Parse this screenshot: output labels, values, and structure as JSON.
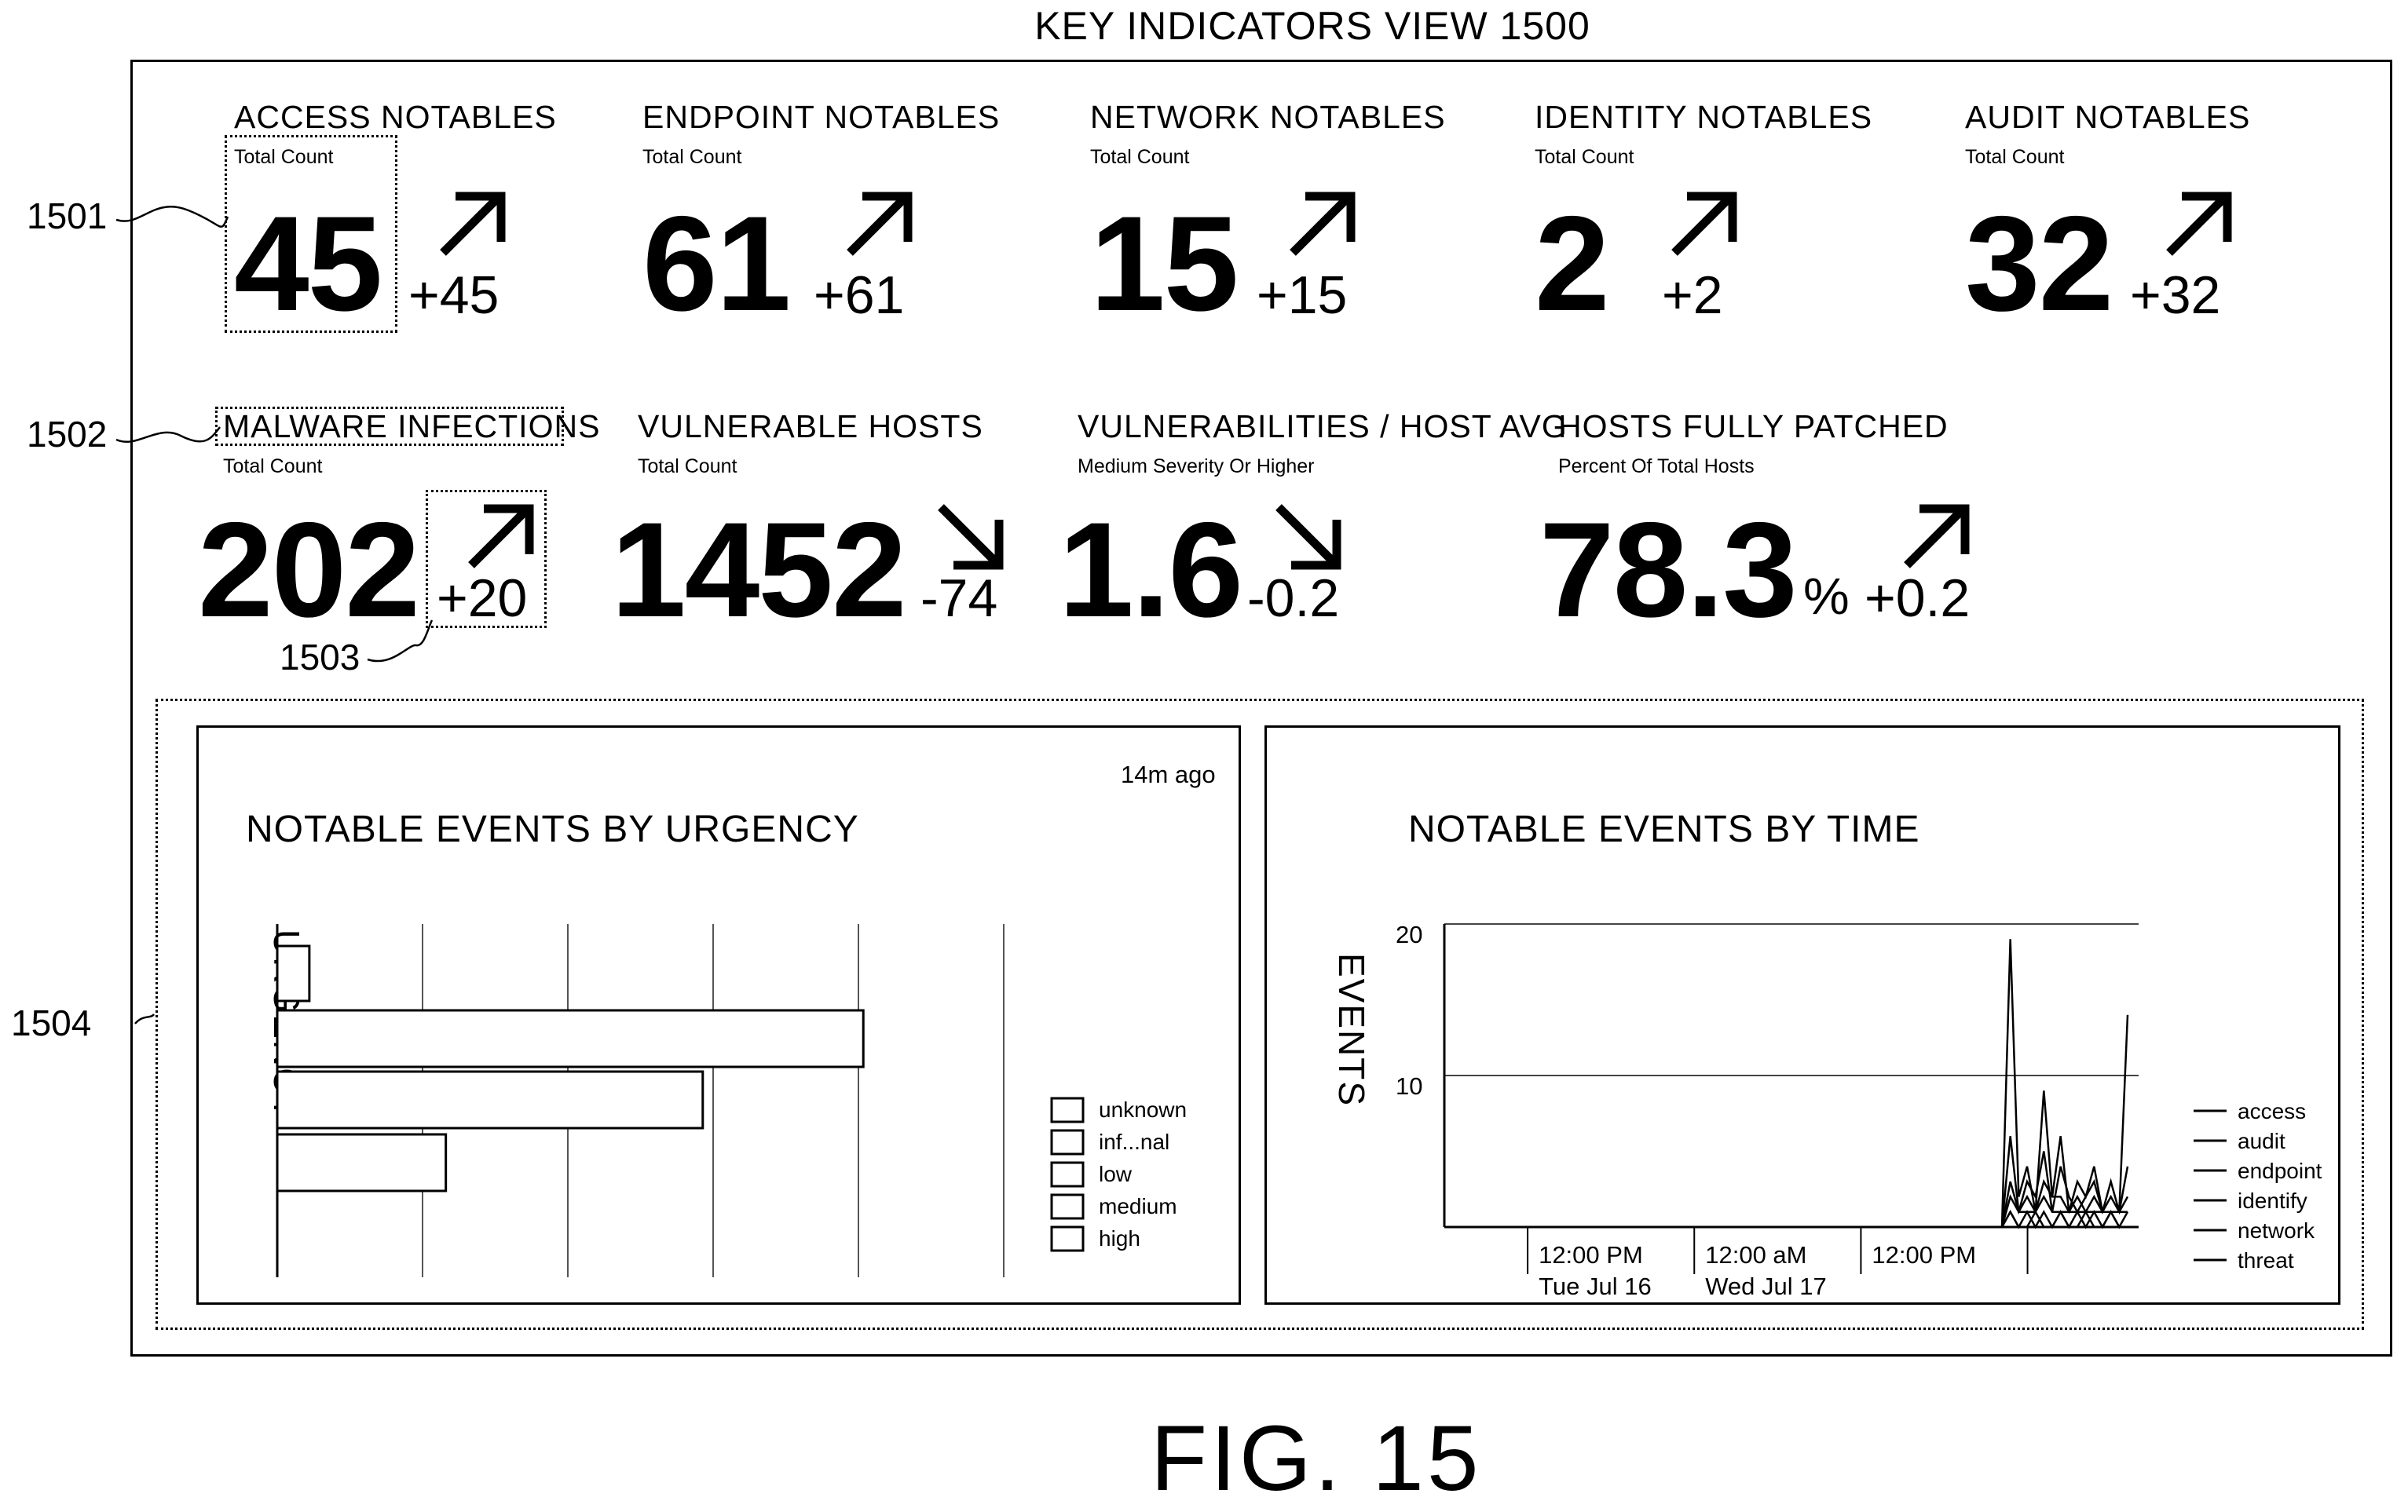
{
  "view_title": "KEY INDICATORS VIEW 1500",
  "figure_label": "FIG. 15",
  "reference_labels": {
    "r1501": "1501",
    "r1502": "1502",
    "r1503": "1503",
    "r1504": "1504"
  },
  "kpis_row1": [
    {
      "title": "ACCESS NOTABLES",
      "sub": "Total Count",
      "value": "45",
      "delta": "+45",
      "trend": "up"
    },
    {
      "title": "ENDPOINT NOTABLES",
      "sub": "Total Count",
      "value": "61",
      "delta": "+61",
      "trend": "up"
    },
    {
      "title": "NETWORK NOTABLES",
      "sub": "Total Count",
      "value": "15",
      "delta": "+15",
      "trend": "up"
    },
    {
      "title": "IDENTITY NOTABLES",
      "sub": "Total Count",
      "value": "2",
      "delta": "+2",
      "trend": "up"
    },
    {
      "title": "AUDIT NOTABLES",
      "sub": "Total Count",
      "value": "32",
      "delta": "+32",
      "trend": "up"
    }
  ],
  "kpis_row2": [
    {
      "title": "MALWARE INFECTIONS",
      "sub": "Total Count",
      "value": "202",
      "delta": "+20",
      "trend": "up"
    },
    {
      "title": "VULNERABLE HOSTS",
      "sub": "Total Count",
      "value": "1452",
      "delta": "-74",
      "trend": "down"
    },
    {
      "title": "VULNERABILITIES / HOST AVG",
      "sub": "Medium Severity Or Higher",
      "value": "1.6",
      "delta": "-0.2",
      "trend": "down"
    },
    {
      "title": "HOSTS FULLY PATCHED",
      "sub": "Percent Of Total Hosts",
      "value": "78.3",
      "unit": "%",
      "delta": "+0.2",
      "trend": "up"
    }
  ],
  "panels": {
    "urgency": {
      "title": "NOTABLE EVENTS BY URGENCY",
      "timestamp": "14m ago",
      "ylabel": "URGENCY"
    },
    "time": {
      "title": "NOTABLE EVENTS BY TIME",
      "ylabel": "EVENTS"
    }
  },
  "chart_data": [
    {
      "type": "bar",
      "orientation": "horizontal",
      "title": "NOTABLE EVENTS BY URGENCY",
      "ylabel": "URGENCY",
      "categories": [
        "unknown",
        "informational",
        "low",
        "medium"
      ],
      "values": [
        0.4,
        7.3,
        5.3,
        2.1
      ],
      "xlim": [
        0,
        9
      ],
      "grid": true,
      "legend": [
        "unknown",
        "inf...nal",
        "low",
        "medium",
        "high"
      ],
      "legend_position": "right"
    },
    {
      "type": "line",
      "title": "NOTABLE EVENTS BY TIME",
      "ylabel": "EVENTS",
      "ylim": [
        0,
        20
      ],
      "yticks": [
        10,
        20
      ],
      "xticks": [
        {
          "line1": "12:00 PM",
          "line2": "Tue Jul 16"
        },
        {
          "line1": "12:00 aM",
          "line2": "Wed Jul 17"
        },
        {
          "line1": "12:00 PM",
          "line2": ""
        }
      ],
      "x_range_hours": [
        0,
        48
      ],
      "x_tick_hours": [
        6,
        18,
        30,
        42
      ],
      "x": [
        42,
        42.5,
        43,
        43.5,
        44,
        44.5,
        45,
        45.5,
        46,
        46.5,
        47,
        47.5,
        48,
        48.5,
        49,
        49.5
      ],
      "series": [
        {
          "name": "access",
          "values": [
            0,
            19,
            2,
            4,
            1,
            9,
            2,
            6,
            1,
            3,
            2,
            4,
            1,
            3,
            1,
            14
          ]
        },
        {
          "name": "audit",
          "values": [
            0,
            6,
            1,
            3,
            2,
            5,
            1,
            4,
            2,
            1,
            2,
            3,
            1,
            2,
            1,
            4
          ]
        },
        {
          "name": "endpoint",
          "values": [
            0,
            3,
            1,
            2,
            1,
            3,
            2,
            2,
            1,
            2,
            1,
            2,
            1,
            1,
            1,
            2
          ]
        },
        {
          "name": "identify",
          "values": [
            0,
            1,
            0,
            1,
            0,
            1,
            0,
            1,
            0,
            1,
            0,
            1,
            0,
            1,
            0,
            1
          ]
        },
        {
          "name": "network",
          "values": [
            0,
            2,
            1,
            1,
            1,
            2,
            1,
            1,
            1,
            1,
            1,
            1,
            1,
            1,
            1,
            1
          ]
        },
        {
          "name": "threat",
          "values": [
            0,
            1,
            0,
            0,
            1,
            0,
            0,
            1,
            0,
            0,
            1,
            0,
            0,
            1,
            0,
            0
          ]
        }
      ],
      "legend_position": "right"
    }
  ]
}
